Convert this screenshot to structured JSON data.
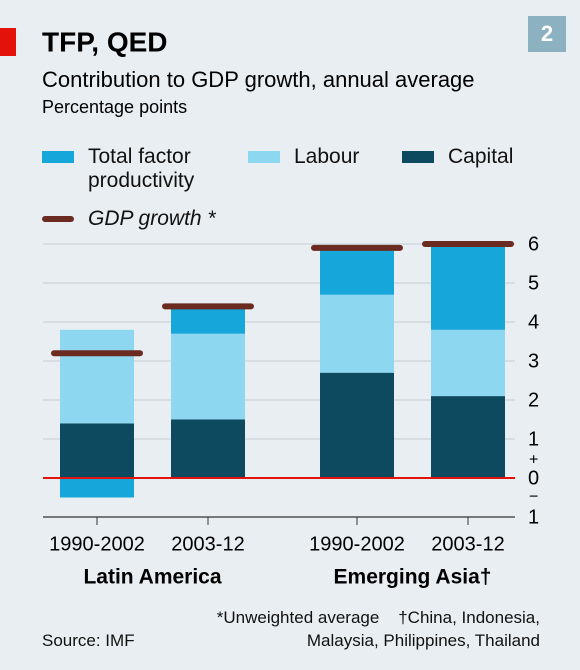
{
  "chart_data": {
    "type": "stacked_bar",
    "badge": "2",
    "title": "TFP, QED",
    "subtitle": "Contribution to GDP growth, annual average",
    "unit_label": "Percentage points",
    "categories": [
      "1990-2002",
      "2003-12",
      "1990-2002",
      "2003-12"
    ],
    "groups": [
      {
        "name": "Latin America",
        "members": [
          0,
          1
        ]
      },
      {
        "name": "Emerging Asia†",
        "members": [
          2,
          3
        ]
      }
    ],
    "series": [
      {
        "name": "Capital",
        "color": "#0d4a5f",
        "values": [
          1.4,
          1.5,
          2.7,
          2.1
        ]
      },
      {
        "name": "Labour",
        "color": "#8ed7f1",
        "values": [
          2.4,
          2.2,
          2.0,
          1.7
        ]
      },
      {
        "name": "Total factor productivity",
        "color": "#16a6d9",
        "values": [
          -0.5,
          0.7,
          1.2,
          2.2
        ]
      }
    ],
    "gdp_growth": {
      "name": "GDP growth *",
      "color": "#6b2b20",
      "values": [
        3.2,
        4.4,
        5.9,
        6.0
      ]
    },
    "ylim": [
      -1,
      6
    ],
    "yticks": [
      {
        "value": -1,
        "label": "1"
      },
      0,
      1,
      2,
      3,
      4,
      5,
      6
    ],
    "axis_signs": [
      "+",
      "−"
    ],
    "zero_line_color": "#e3120b",
    "grid": true,
    "footnotes": [
      "*Unweighted average",
      "†China, Indonesia, Malaysia, Philippines, Thailand"
    ],
    "source": "Source: IMF"
  }
}
